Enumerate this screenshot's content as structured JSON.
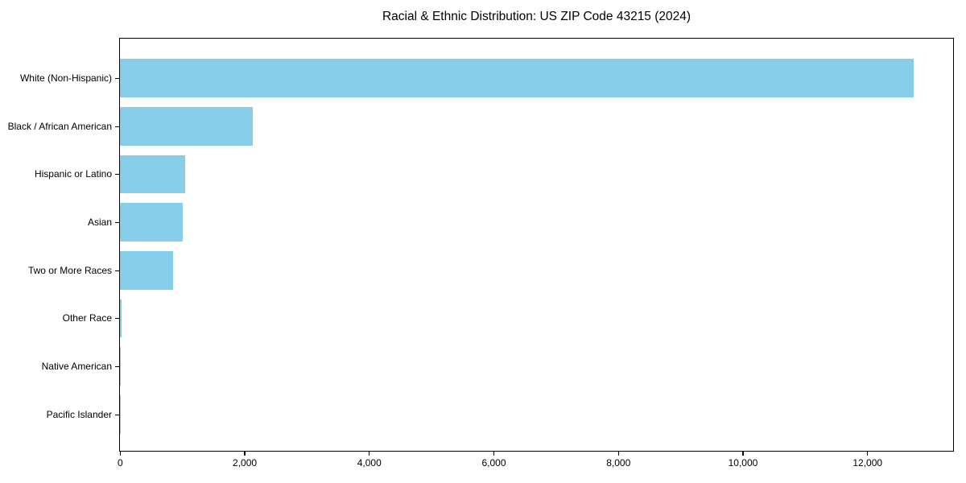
{
  "chart_data": {
    "type": "bar",
    "orientation": "horizontal",
    "title": "Racial & Ethnic Distribution: US ZIP Code 43215 (2024)",
    "categories": [
      "White (Non-Hispanic)",
      "Black / African American",
      "Hispanic or Latino",
      "Asian",
      "Two or More Races",
      "Other Race",
      "Native American",
      "Pacific Islander"
    ],
    "values": [
      12740,
      2130,
      1050,
      1010,
      850,
      25,
      10,
      5
    ],
    "xlabel": "",
    "ylabel": "",
    "xlim": [
      0,
      13370
    ],
    "x_ticks": [
      0,
      2000,
      4000,
      6000,
      8000,
      10000,
      12000
    ],
    "x_tick_labels": [
      "0",
      "2,000",
      "4,000",
      "6,000",
      "8,000",
      "10,000",
      "12,000"
    ],
    "grid": false,
    "legend": "none",
    "bar_color": "#87CEEB",
    "background_color": "#ffffff",
    "spine_color": "#000000",
    "text_color": "#000000"
  }
}
